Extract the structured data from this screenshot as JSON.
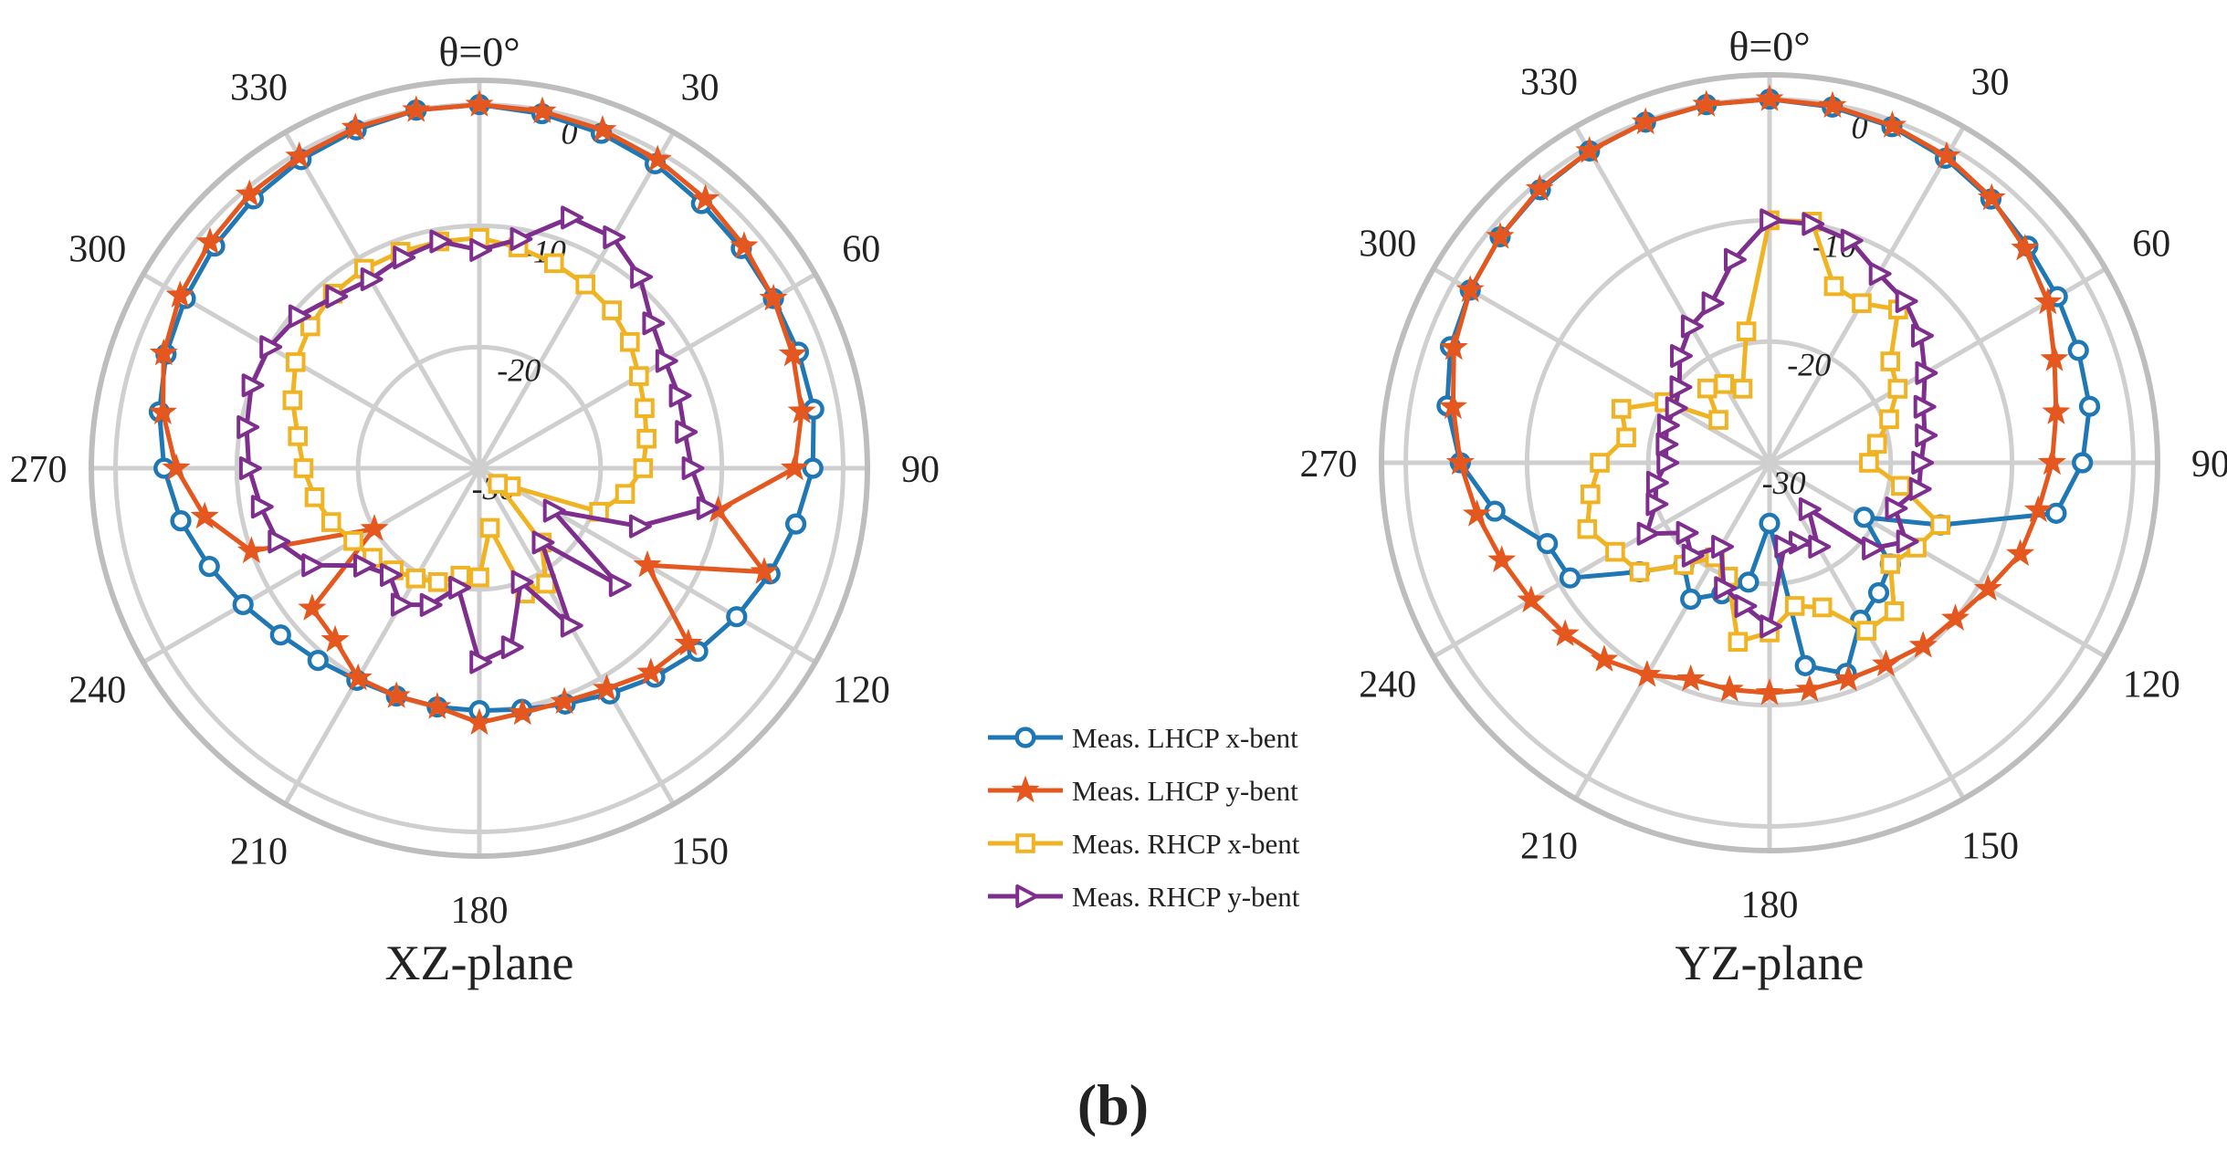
{
  "caption": "(b)",
  "chart_data": [
    {
      "type": "polar-line",
      "title": "XZ-plane",
      "zero_label": "θ=0°",
      "angle_ticks": [
        "0",
        "30",
        "60",
        "90",
        "120",
        "150",
        "180",
        "210",
        "240",
        "270",
        "300",
        "330"
      ],
      "angle_tick_values": [
        0,
        30,
        60,
        90,
        120,
        150,
        180,
        210,
        240,
        270,
        300,
        330
      ],
      "angle_direction": "clockwise",
      "r_ticks": [
        "0",
        "-10",
        "-20",
        "-30"
      ],
      "r_tick_values": [
        0,
        -10,
        -20,
        -30
      ],
      "rlim": [
        -30,
        2
      ],
      "theta": [
        0,
        10,
        20,
        30,
        40,
        50,
        60,
        70,
        80,
        90,
        100,
        110,
        120,
        130,
        140,
        150,
        160,
        170,
        180,
        190,
        200,
        210,
        220,
        230,
        240,
        250,
        260,
        270,
        280,
        290,
        300,
        310,
        320,
        330,
        340,
        350,
        360
      ],
      "series": [
        {
          "name": "Meas. LHCP x-bent",
          "color": "#1f77b4",
          "marker": "circle",
          "values": [
            0,
            -0.3,
            -0.6,
            -1,
            -1.5,
            -1.8,
            -2,
            -2,
            -2,
            -2.5,
            -3.5,
            -4.5,
            -5.5,
            -6.5,
            -7.5,
            -8.5,
            -9.3,
            -9.8,
            -10,
            -10,
            -10,
            -9.8,
            -9.3,
            -8.6,
            -7.5,
            -6.3,
            -5,
            -4,
            -3.2,
            -2.5,
            -2,
            -1.5,
            -1,
            -0.6,
            -0.3,
            0,
            0
          ]
        },
        {
          "name": "Meas. LHCP y-bent",
          "color": "#e4571e",
          "marker": "star",
          "values": [
            0,
            -0.1,
            -0.3,
            -0.6,
            -1,
            -1.5,
            -2,
            -2.5,
            -3,
            -4,
            -10,
            -5,
            -14,
            -7.5,
            -8,
            -9,
            -9.5,
            -9.5,
            -9,
            -10,
            -10,
            -10,
            -11.5,
            -12,
            -20,
            -10,
            -7,
            -5,
            -3.5,
            -2.3,
            -1.5,
            -1,
            -0.5,
            -0.3,
            -0.1,
            0,
            0
          ]
        },
        {
          "name": "Meas. RHCP x-bent",
          "color": "#f0b323",
          "marker": "square",
          "values": [
            -11,
            -11.5,
            -12,
            -12.5,
            -13,
            -13.8,
            -14.8,
            -15.5,
            -16,
            -16.5,
            -17.8,
            -19.5,
            -27,
            -28,
            -22,
            -19,
            -19,
            -25,
            -21,
            -21,
            -20,
            -19.5,
            -19,
            -18.5,
            -18,
            -17,
            -16.2,
            -15.5,
            -14.8,
            -13.6,
            -12.5,
            -11.8,
            -11.2,
            -11,
            -11,
            -11,
            -11
          ]
        },
        {
          "name": "Meas. RHCP y-bent",
          "color": "#7e2f8e",
          "marker": "triangle-right",
          "values": [
            -12,
            -10.8,
            -8,
            -8,
            -9.4,
            -11.4,
            -12.3,
            -12.5,
            -12.8,
            -12.5,
            -11,
            -16,
            -23,
            -15,
            -22,
            -15,
            -20,
            -15,
            -14,
            -20,
            -18,
            -17,
            -18.5,
            -17.5,
            -14,
            -12.3,
            -11.7,
            -11,
            -10.5,
            -10,
            -10,
            -10.5,
            -11.5,
            -12,
            -11.5,
            -11,
            -12
          ]
        }
      ]
    },
    {
      "type": "polar-line",
      "title": "YZ-plane",
      "zero_label": "θ=0°",
      "angle_ticks": [
        "0",
        "30",
        "60",
        "90",
        "120",
        "150",
        "180",
        "210",
        "240",
        "270",
        "300",
        "330"
      ],
      "angle_tick_values": [
        0,
        30,
        60,
        90,
        120,
        150,
        180,
        210,
        240,
        270,
        300,
        330
      ],
      "angle_direction": "clockwise",
      "r_ticks": [
        "0",
        "-10",
        "-20",
        "-30"
      ],
      "r_tick_values": [
        0,
        -10,
        -20,
        -30
      ],
      "rlim": [
        -30,
        2
      ],
      "theta": [
        0,
        10,
        20,
        30,
        40,
        50,
        60,
        70,
        80,
        90,
        100,
        110,
        120,
        130,
        140,
        150,
        160,
        170,
        180,
        190,
        200,
        210,
        220,
        230,
        240,
        250,
        260,
        270,
        280,
        290,
        300,
        310,
        320,
        330,
        340,
        350,
        360
      ],
      "series": [
        {
          "name": "Meas. LHCP x-bent",
          "color": "#1f77b4",
          "marker": "circle",
          "values": [
            0,
            -0.2,
            -0.5,
            -1,
            -1.6,
            -2.2,
            -2.6,
            -2.9,
            -3.2,
            -4.2,
            -6,
            -15,
            -21,
            -17,
            -16,
            -15,
            -11.5,
            -13,
            -25,
            -20,
            -18.5,
            -17,
            -19,
            -16,
            -11,
            -10.5,
            -7,
            -4.5,
            -3,
            -2,
            -1.5,
            -1,
            -0.6,
            -0.3,
            -0.1,
            0,
            0
          ]
        },
        {
          "name": "Meas. LHCP y-bent",
          "color": "#e4571e",
          "marker": "star",
          "values": [
            0,
            -0.1,
            -0.4,
            -0.8,
            -1.5,
            -2.5,
            -3.5,
            -5,
            -6,
            -6.7,
            -7.5,
            -8,
            -9.2,
            -10,
            -10.3,
            -10.8,
            -11,
            -11,
            -11,
            -11,
            -11,
            -9.8,
            -8.8,
            -8,
            -7.3,
            -6.5,
            -5.5,
            -4.5,
            -3.5,
            -2.3,
            -1.5,
            -1,
            -0.5,
            -0.3,
            -0.1,
            0,
            0
          ]
        },
        {
          "name": "Meas. RHCP x-bent",
          "color": "#f0b323",
          "marker": "square",
          "values": [
            -10,
            -9.8,
            -14.5,
            -14.8,
            -13.5,
            -17,
            -17.8,
            -19.5,
            -21,
            -21.8,
            -19,
            -15,
            -16,
            -17,
            -14,
            -14,
            -17.3,
            -18,
            -16,
            -15,
            -20,
            -21,
            -19,
            -16,
            -15.3,
            -14,
            -15,
            -16,
            -18,
            -17,
            -20,
            -24.5,
            -22,
            -22.5,
            -23.5,
            -19,
            -10
          ]
        },
        {
          "name": "Meas. RHCP y-bent",
          "color": "#7e2f8e",
          "marker": "triangle-right",
          "values": [
            -10,
            -10,
            -10.5,
            -12,
            -12.6,
            -13.7,
            -15.2,
            -16.5,
            -17,
            -17.5,
            -17.5,
            -19,
            -17,
            -19,
            -25,
            -22,
            -23,
            -23,
            -16.5,
            -18,
            -19,
            -22,
            -20,
            -21,
            -18.3,
            -20,
            -20.5,
            -21.5,
            -21.3,
            -21,
            -21,
            -20.3,
            -18.5,
            -17,
            -16,
            -13,
            -10
          ]
        }
      ]
    }
  ]
}
